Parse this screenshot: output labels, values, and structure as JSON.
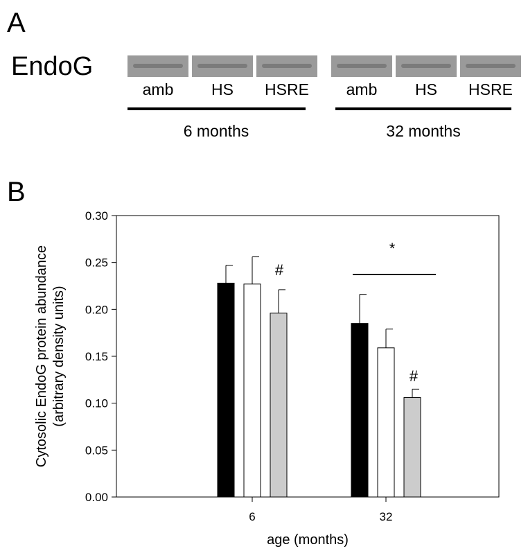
{
  "panel_a": {
    "label": "A",
    "protein": "EndoG",
    "lanes": [
      "amb",
      "HS",
      "HSRE",
      "amb",
      "HS",
      "HSRE"
    ],
    "groups": [
      "6 months",
      "32 months"
    ]
  },
  "panel_b_label": "B",
  "chart_data": {
    "type": "bar",
    "ylabel": [
      "Cytosolic EndoG protein abundance",
      "(arbitrary density units)"
    ],
    "xlabel": "age (months)",
    "categories": [
      "6",
      "32"
    ],
    "series": [
      {
        "color": "#000000",
        "values": [
          0.228,
          0.185
        ],
        "errors": [
          0.019,
          0.031
        ]
      },
      {
        "color": "#ffffff",
        "values": [
          0.227,
          0.159
        ],
        "errors": [
          0.029,
          0.02
        ]
      },
      {
        "color": "#cccccc",
        "values": [
          0.196,
          0.106
        ],
        "errors": [
          0.025,
          0.009
        ]
      }
    ],
    "ylim": [
      0,
      0.3
    ],
    "yticks": [
      {
        "value": 0,
        "label": "0.00"
      },
      {
        "value": 0.05,
        "label": "0.05"
      },
      {
        "value": 0.1,
        "label": "0.10"
      },
      {
        "value": 0.15,
        "label": "0.15"
      },
      {
        "value": 0.2,
        "label": "0.20"
      },
      {
        "value": 0.25,
        "label": "0.25"
      },
      {
        "value": 0.3,
        "label": "0.30"
      }
    ],
    "annotations": [
      "#",
      "#",
      "*"
    ]
  }
}
